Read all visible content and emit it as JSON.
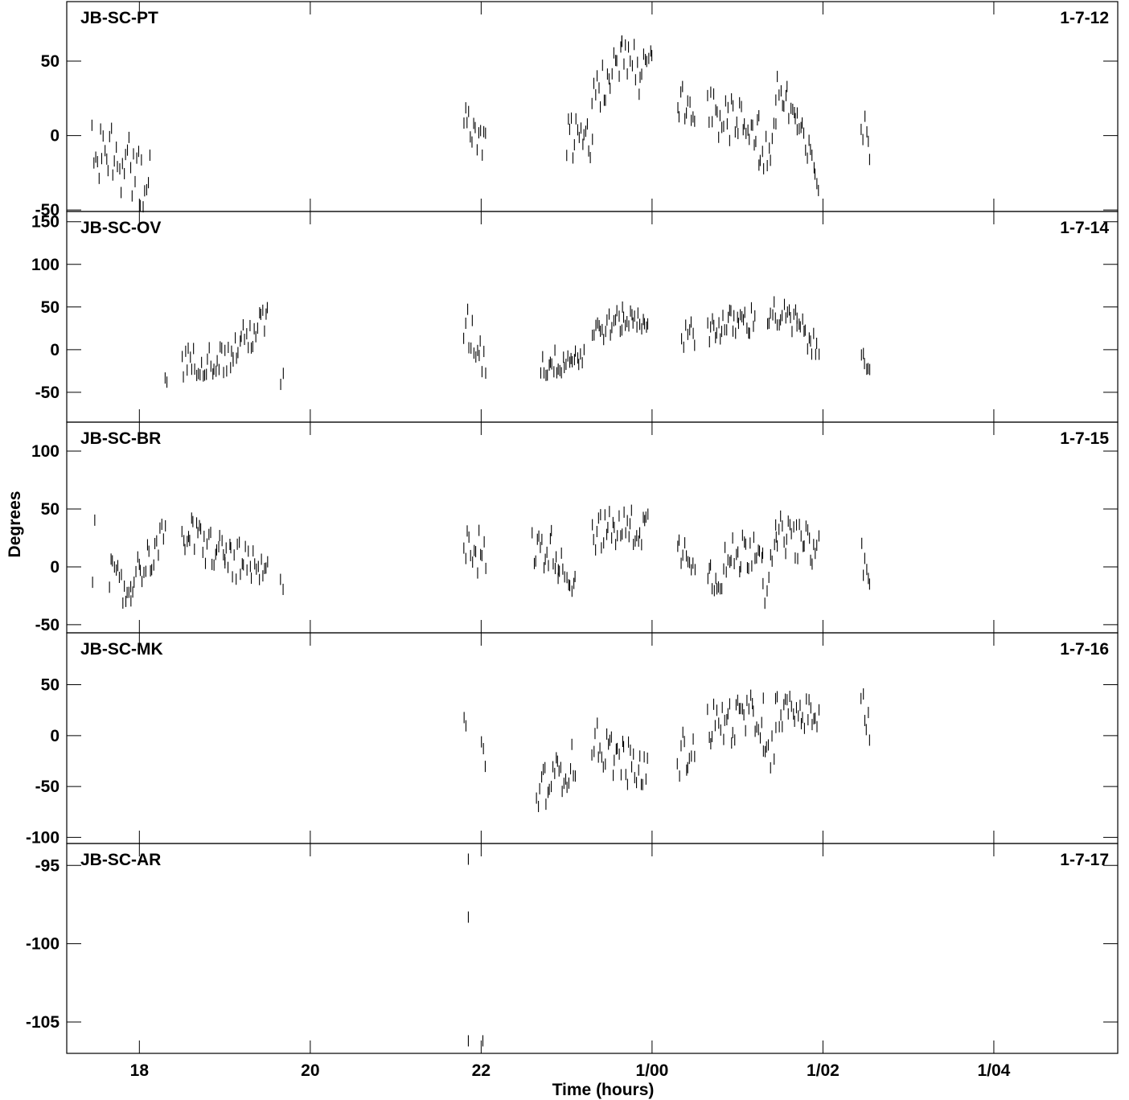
{
  "chart_data": {
    "type": "scatter",
    "marker": "short vertical dash",
    "grid": false,
    "xlabel": "Time (hours)",
    "ylabel": "Degrees",
    "x_ticks": [
      {
        "value": 18,
        "label": "18"
      },
      {
        "value": 20,
        "label": "20"
      },
      {
        "value": 22,
        "label": "22"
      },
      {
        "value": 24,
        "label": "1/00"
      },
      {
        "value": 26,
        "label": "1/02"
      },
      {
        "value": 28,
        "label": "1/04"
      }
    ],
    "xlim": [
      17.15,
      29.45
    ],
    "panels": [
      {
        "name": "JB-SC-PT",
        "id": "1-7-12",
        "ylim": [
          -51,
          90
        ],
        "yticks": [
          -50,
          0,
          50
        ],
        "segments": [
          {
            "x0": 17.45,
            "x1": 18.12,
            "y0": -5,
            "y1": -30,
            "jitter": 22
          },
          {
            "x0": 21.8,
            "x1": 22.05,
            "y0": 10,
            "y1": -5,
            "jitter": 12
          },
          {
            "x0": 23.0,
            "x1": 23.3,
            "y0": 0,
            "y1": -5,
            "jitter": 14
          },
          {
            "x0": 23.3,
            "x1": 23.65,
            "y0": 25,
            "y1": 50,
            "jitter": 14
          },
          {
            "x0": 23.65,
            "x1": 24.0,
            "y0": 50,
            "y1": 45,
            "jitter": 20
          },
          {
            "x0": 24.3,
            "x1": 24.5,
            "y0": 25,
            "y1": 5,
            "jitter": 15
          },
          {
            "x0": 24.65,
            "x1": 25.25,
            "y0": 15,
            "y1": 5,
            "jitter": 15
          },
          {
            "x0": 25.25,
            "x1": 25.45,
            "y0": -15,
            "y1": -5,
            "jitter": 15
          },
          {
            "x0": 25.45,
            "x1": 25.7,
            "y0": 35,
            "y1": 10,
            "jitter": 18
          },
          {
            "x0": 25.7,
            "x1": 25.95,
            "y0": 5,
            "y1": -30,
            "jitter": 12
          },
          {
            "x0": 26.45,
            "x1": 26.55,
            "y0": 5,
            "y1": -5,
            "jitter": 14
          }
        ]
      },
      {
        "name": "JB-SC-OV",
        "id": "1-7-14",
        "ylim": [
          -85,
          162
        ],
        "yticks": [
          -50,
          0,
          50,
          100,
          150
        ],
        "segments": [
          {
            "x0": 18.3,
            "x1": 18.32,
            "y0": -35,
            "y1": -35,
            "jitter": 15
          },
          {
            "x0": 18.5,
            "x1": 19.1,
            "y0": -15,
            "y1": -10,
            "jitter": 18
          },
          {
            "x0": 19.1,
            "x1": 19.5,
            "y0": 0,
            "y1": 35,
            "jitter": 20
          },
          {
            "x0": 19.65,
            "x1": 19.68,
            "y0": -30,
            "y1": -30,
            "jitter": 25
          },
          {
            "x0": 21.8,
            "x1": 22.05,
            "y0": 30,
            "y1": -10,
            "jitter": 25
          },
          {
            "x0": 22.7,
            "x1": 23.2,
            "y0": -20,
            "y1": -5,
            "jitter": 16
          },
          {
            "x0": 23.3,
            "x1": 23.65,
            "y0": 20,
            "y1": 35,
            "jitter": 15
          },
          {
            "x0": 23.65,
            "x1": 23.95,
            "y0": 35,
            "y1": 35,
            "jitter": 14
          },
          {
            "x0": 24.35,
            "x1": 24.5,
            "y0": 15,
            "y1": 20,
            "jitter": 15
          },
          {
            "x0": 24.65,
            "x1": 25.2,
            "y0": 25,
            "y1": 35,
            "jitter": 18
          },
          {
            "x0": 25.35,
            "x1": 25.7,
            "y0": 45,
            "y1": 30,
            "jitter": 18
          },
          {
            "x0": 25.7,
            "x1": 25.95,
            "y0": 30,
            "y1": -5,
            "jitter": 16
          },
          {
            "x0": 26.45,
            "x1": 26.55,
            "y0": 0,
            "y1": -15,
            "jitter": 14
          }
        ]
      },
      {
        "name": "JB-SC-BR",
        "id": "1-7-15",
        "ylim": [
          -57,
          125
        ],
        "yticks": [
          -50,
          0,
          50,
          100
        ],
        "segments": [
          {
            "x0": 17.45,
            "x1": 17.48,
            "y0": 0,
            "y1": 30,
            "jitter": 14
          },
          {
            "x0": 17.65,
            "x1": 17.9,
            "y0": -10,
            "y1": -25,
            "jitter": 18
          },
          {
            "x0": 17.9,
            "x1": 18.3,
            "y0": -10,
            "y1": 25,
            "jitter": 16
          },
          {
            "x0": 18.5,
            "x1": 19.0,
            "y0": 30,
            "y1": 10,
            "jitter": 18
          },
          {
            "x0": 19.0,
            "x1": 19.5,
            "y0": 10,
            "y1": -10,
            "jitter": 18
          },
          {
            "x0": 19.65,
            "x1": 19.68,
            "y0": -10,
            "y1": -10,
            "jitter": 14
          },
          {
            "x0": 21.8,
            "x1": 22.05,
            "y0": 30,
            "y1": 5,
            "jitter": 22
          },
          {
            "x0": 22.6,
            "x1": 22.9,
            "y0": 15,
            "y1": 15,
            "jitter": 18
          },
          {
            "x0": 22.9,
            "x1": 23.1,
            "y0": 0,
            "y1": -10,
            "jitter": 16
          },
          {
            "x0": 23.3,
            "x1": 23.95,
            "y0": 30,
            "y1": 35,
            "jitter": 17
          },
          {
            "x0": 24.3,
            "x1": 24.5,
            "y0": 15,
            "y1": 10,
            "jitter": 14
          },
          {
            "x0": 24.65,
            "x1": 25.3,
            "y0": -10,
            "y1": 25,
            "jitter": 20
          },
          {
            "x0": 25.3,
            "x1": 25.45,
            "y0": -20,
            "y1": 10,
            "jitter": 16
          },
          {
            "x0": 25.45,
            "x1": 25.95,
            "y0": 30,
            "y1": 15,
            "jitter": 16
          },
          {
            "x0": 26.45,
            "x1": 26.55,
            "y0": 15,
            "y1": -20,
            "jitter": 16
          }
        ]
      },
      {
        "name": "JB-SC-MK",
        "id": "1-7-16",
        "ylim": [
          -106,
          101
        ],
        "yticks": [
          -100,
          -50,
          0,
          50
        ],
        "segments": [
          {
            "x0": 21.8,
            "x1": 21.82,
            "y0": 15,
            "y1": 15,
            "jitter": 15
          },
          {
            "x0": 22.0,
            "x1": 22.05,
            "y0": -10,
            "y1": -35,
            "jitter": 18
          },
          {
            "x0": 22.65,
            "x1": 23.1,
            "y0": -55,
            "y1": -25,
            "jitter": 20
          },
          {
            "x0": 23.3,
            "x1": 23.95,
            "y0": -5,
            "y1": -40,
            "jitter": 22
          },
          {
            "x0": 24.3,
            "x1": 24.5,
            "y0": -20,
            "y1": -10,
            "jitter": 22
          },
          {
            "x0": 24.65,
            "x1": 25.3,
            "y0": 10,
            "y1": 20,
            "jitter": 22
          },
          {
            "x0": 25.3,
            "x1": 25.45,
            "y0": -30,
            "y1": -10,
            "jitter": 20
          },
          {
            "x0": 25.45,
            "x1": 25.95,
            "y0": 25,
            "y1": 20,
            "jitter": 16
          },
          {
            "x0": 26.45,
            "x1": 26.55,
            "y0": 30,
            "y1": 10,
            "jitter": 15
          }
        ]
      },
      {
        "name": "JB-SC-AR",
        "id": "1-7-17",
        "ylim": [
          -107.0,
          -93.6
        ],
        "yticks": [
          -105,
          -100,
          -95
        ],
        "points": [
          {
            "x": 21.85,
            "y": -94.6
          },
          {
            "x": 21.85,
            "y": -98.3
          },
          {
            "x": 21.85,
            "y": -106.2
          },
          {
            "x": 22.02,
            "y": -106.2
          }
        ]
      }
    ]
  }
}
